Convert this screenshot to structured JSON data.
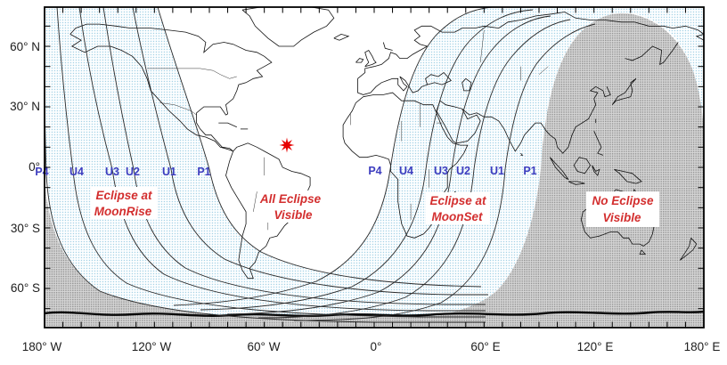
{
  "axes": {
    "lat": [
      "60° N",
      "30° N",
      "0°",
      "30° S",
      "60° S"
    ],
    "lon": [
      "180° W",
      "120° W",
      "60° W",
      "0°",
      "60° E",
      "120° E",
      "180° E"
    ]
  },
  "contacts": {
    "left": [
      "P4",
      "U4",
      "U3",
      "U2",
      "U1",
      "P1"
    ],
    "right": [
      "P4",
      "U4",
      "U3",
      "U2",
      "U1",
      "P1"
    ]
  },
  "regions": {
    "moonrise": {
      "line1": "Eclipse at",
      "line2": "MoonRise"
    },
    "all": {
      "line1": "All Eclipse",
      "line2": "Visible"
    },
    "moonset": {
      "line1": "Eclipse at",
      "line2": "MoonSet"
    },
    "none": {
      "line1": "No Eclipse",
      "line2": "Visible"
    }
  },
  "star": {
    "symbol": "sunburst",
    "color": "#e60000"
  },
  "colors": {
    "contact_label": "#3d3dbf",
    "region_label": "#d32f2f",
    "dot_blue": "#a5d2e6",
    "dot_gray": "#8f8f8f",
    "coastline": "#111111",
    "frame": "#000000"
  }
}
